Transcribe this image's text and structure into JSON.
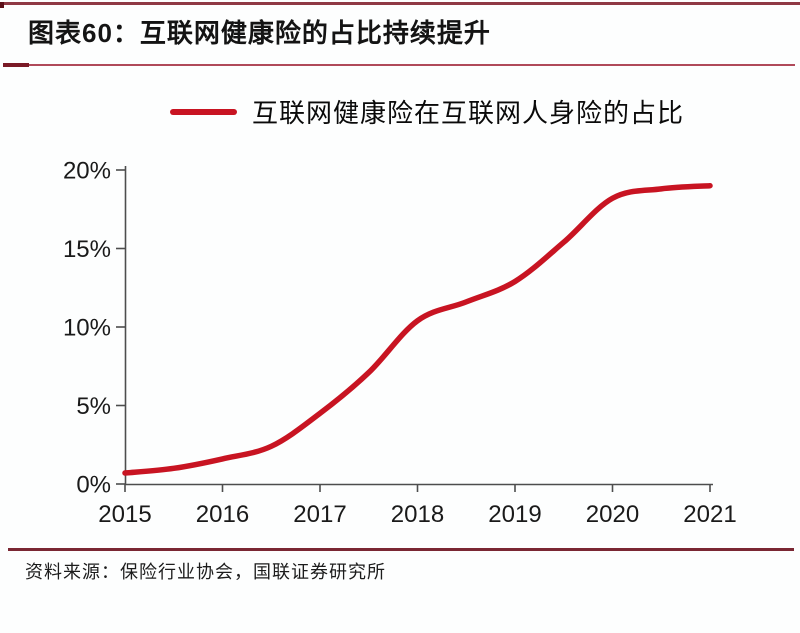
{
  "header": {
    "title": "图表60：互联网健康险的占比持续提升"
  },
  "legend": {
    "label": "互联网健康险在互联网人身险的占比"
  },
  "footer": {
    "source": "资料来源：保险行业协会，国联证券研究所"
  },
  "chart_data": {
    "type": "line",
    "title": "图表60：互联网健康险的占比持续提升",
    "legend": [
      "互联网健康险在互联网人身险的占比"
    ],
    "legend_position": "top-center",
    "categories": [
      "2015",
      "2016",
      "2017",
      "2018",
      "2019",
      "2020",
      "2021"
    ],
    "series": [
      {
        "name": "互联网健康险在互联网人身险的占比",
        "color": "#c81422",
        "values": [
          0.7,
          1.6,
          4.5,
          10.4,
          12.9,
          18.2,
          19.0
        ]
      }
    ],
    "curve_samples": {
      "x": [
        2015,
        2015.5,
        2016,
        2016.5,
        2017,
        2017.5,
        2018,
        2018.5,
        2019,
        2019.5,
        2020,
        2020.5,
        2021
      ],
      "y": [
        0.7,
        1.0,
        1.6,
        2.4,
        4.5,
        7.1,
        10.4,
        11.6,
        12.9,
        15.4,
        18.2,
        18.8,
        19.0
      ]
    },
    "xlabel": "",
    "ylabel": "",
    "x_ticks": [
      "2015",
      "2016",
      "2017",
      "2018",
      "2019",
      "2020",
      "2021"
    ],
    "y_ticks": [
      "0%",
      "5%",
      "10%",
      "15%",
      "20%"
    ],
    "xlim": [
      2015,
      2021
    ],
    "ylim": [
      0,
      20
    ],
    "grid": false
  },
  "colors": {
    "line": "#c81422",
    "top_rule": "#8f3944",
    "top_rule_start": "#5c1018",
    "title_underline_thick": "#7a1a26",
    "title_underline_thin": "#b04a5a",
    "bottom_rule": "#7a2733",
    "axis": "#4d4d4d",
    "tick_label": "#1a1a1a"
  }
}
